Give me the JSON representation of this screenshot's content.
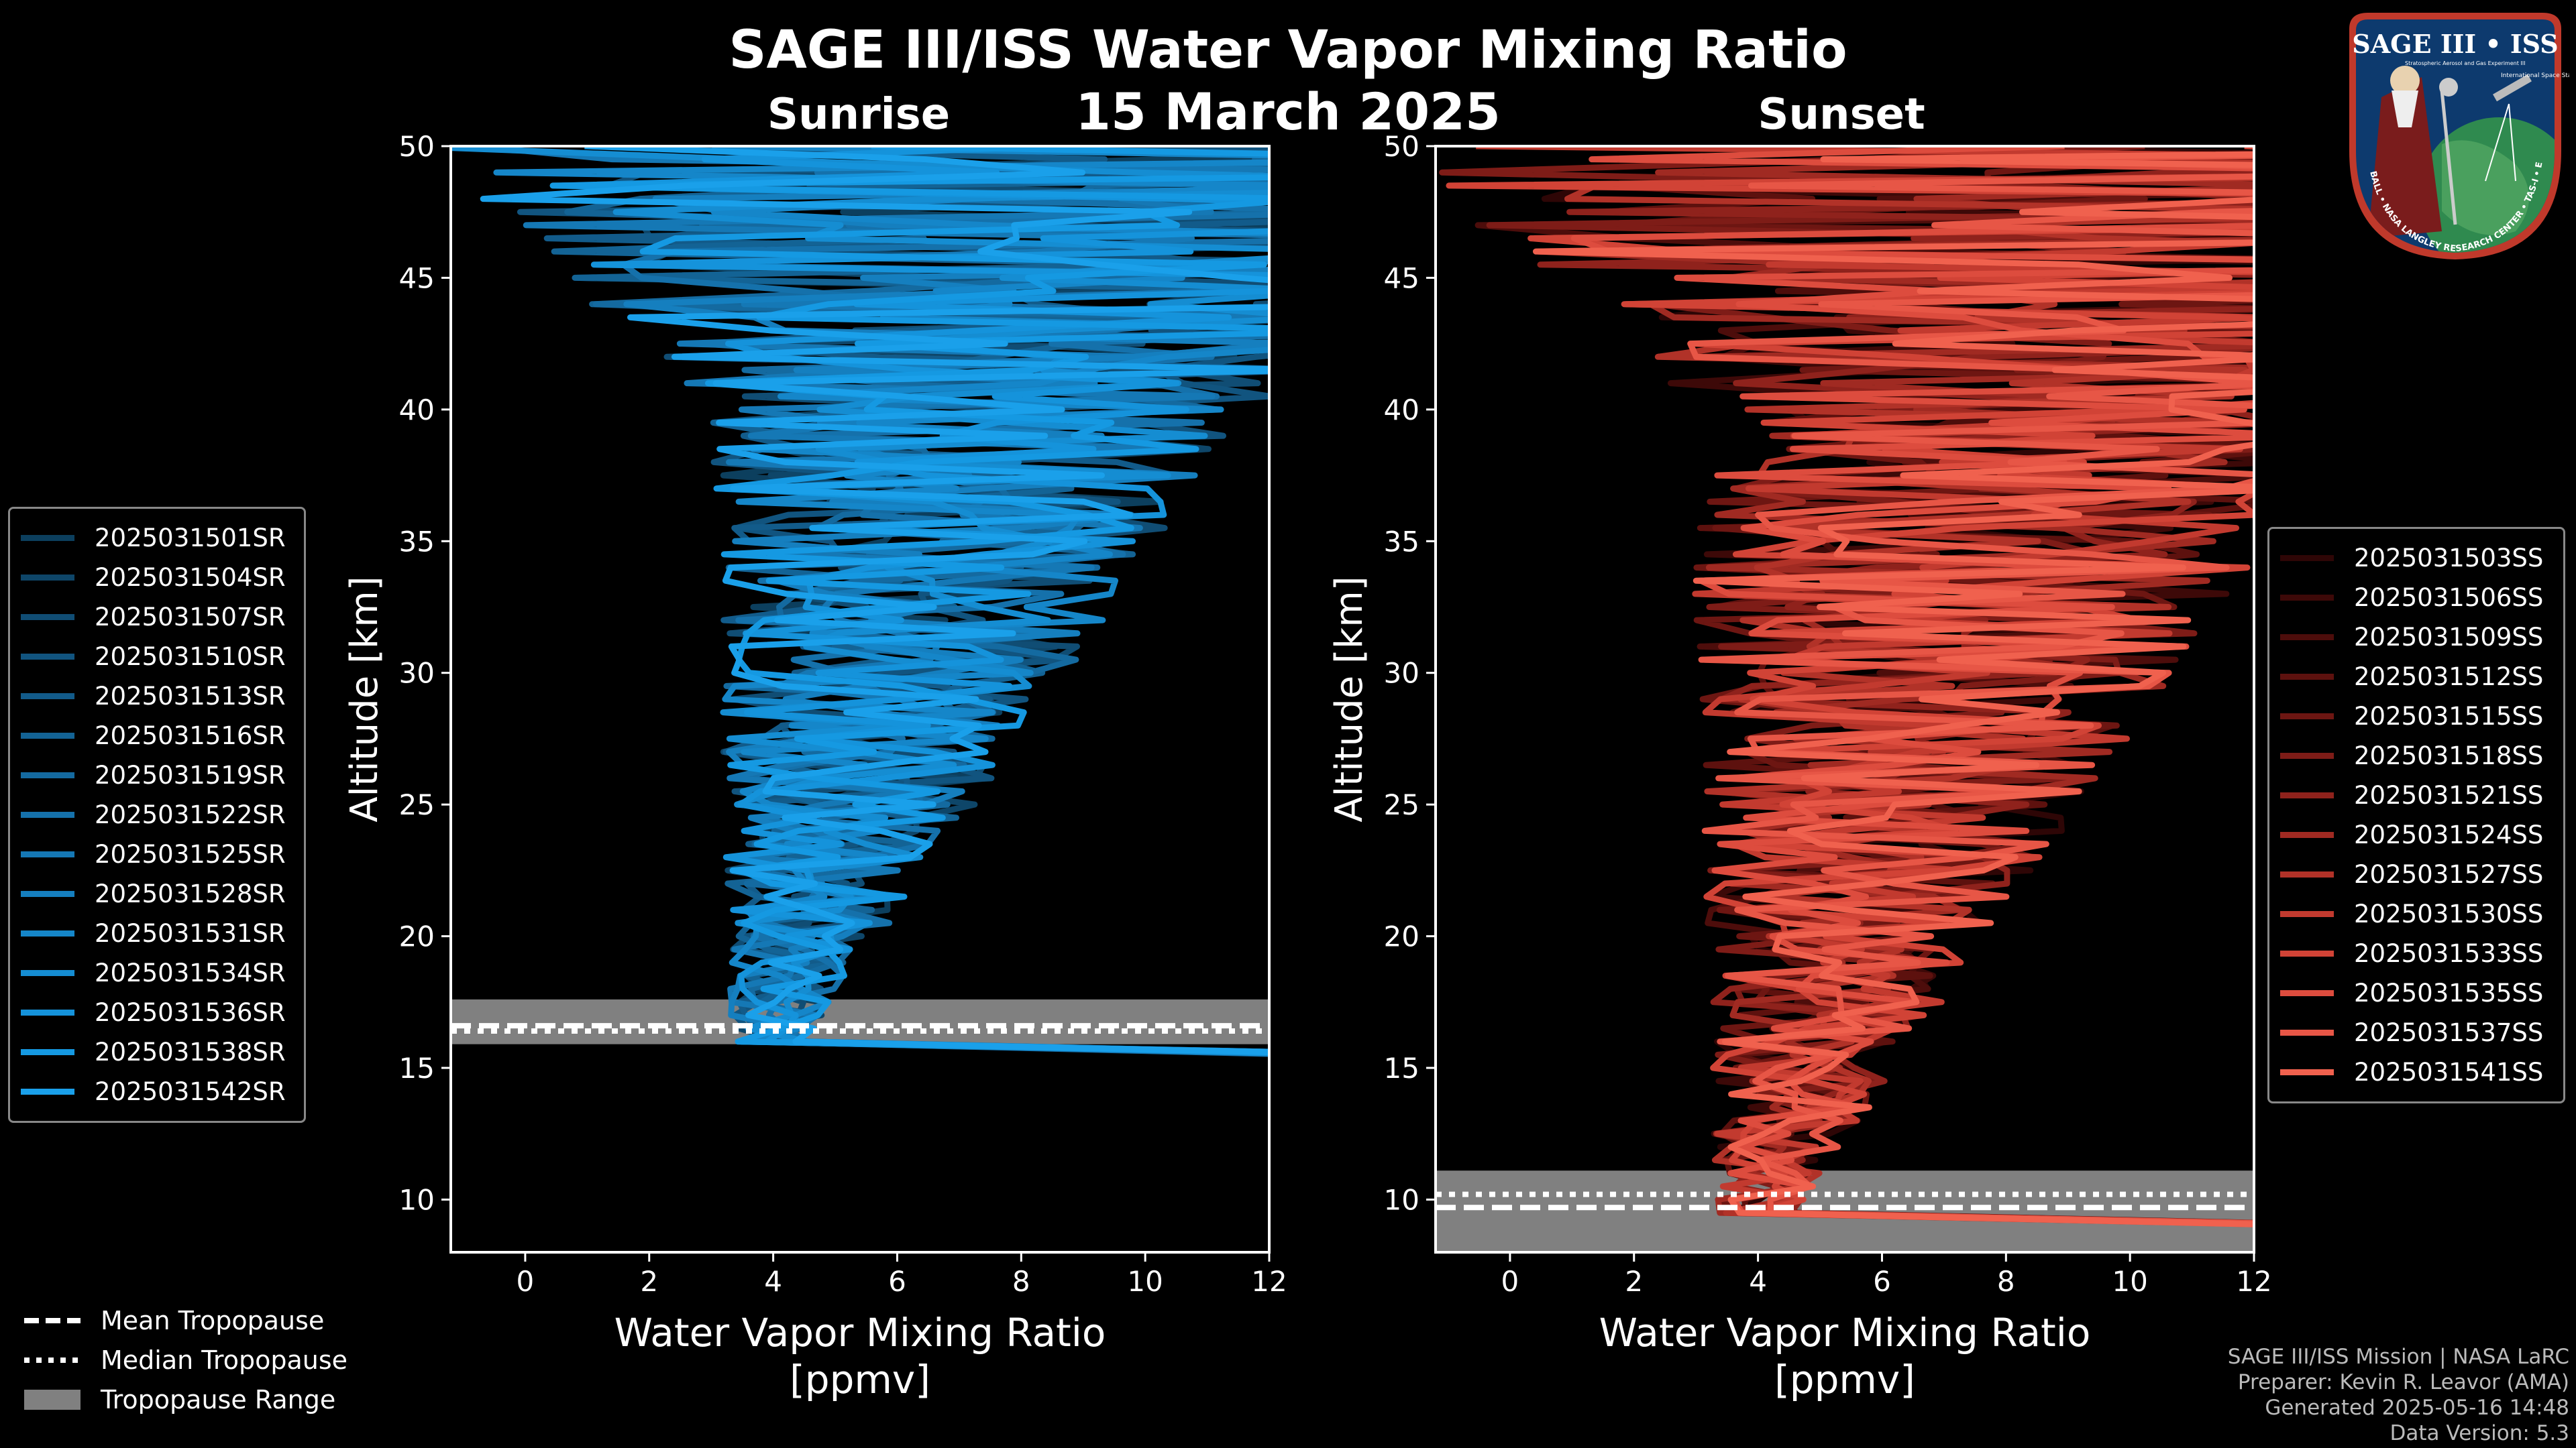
{
  "title": "SAGE III/ISS Water Vapor Mixing Ratio",
  "date": "15 March 2025",
  "logo": {
    "text": "SAGE III • ISS",
    "subtitle": "Stratospheric Aerosol and Gas Experiment III",
    "station": "International Space Station",
    "ring": "BALL • NASA LANGLEY RESEARCH CENTER • TAS-I • ESA"
  },
  "chart_data": [
    {
      "type": "line",
      "name": "sunrise",
      "title": "Sunrise",
      "xlabel": "Water Vapor Mixing Ratio\n[ppmv]",
      "ylabel": "Altitude [km]",
      "xlim": [
        -1.2,
        12
      ],
      "ylim": [
        8,
        50
      ],
      "xticks": [
        0,
        2,
        4,
        6,
        8,
        10,
        12
      ],
      "yticks": [
        10,
        15,
        20,
        25,
        30,
        35,
        40,
        45,
        50
      ],
      "tropopause": {
        "mean": 16.6,
        "median": 16.4,
        "range": [
          15.9,
          17.6
        ]
      },
      "series": [
        {
          "name": "2025031501SR",
          "color": "#0c3f5e"
        },
        {
          "name": "2025031504SR",
          "color": "#0e4669"
        },
        {
          "name": "2025031507SR",
          "color": "#104d74"
        },
        {
          "name": "2025031510SR",
          "color": "#11547f"
        },
        {
          "name": "2025031513SR",
          "color": "#125b8a"
        },
        {
          "name": "2025031516SR",
          "color": "#136395"
        },
        {
          "name": "2025031519SR",
          "color": "#146aa0"
        },
        {
          "name": "2025031522SR",
          "color": "#1571ab"
        },
        {
          "name": "2025031525SR",
          "color": "#1578b5"
        },
        {
          "name": "2025031528SR",
          "color": "#157fbf"
        },
        {
          "name": "2025031531SR",
          "color": "#1586c9"
        },
        {
          "name": "2025031534SR",
          "color": "#158dd2"
        },
        {
          "name": "2025031536SR",
          "color": "#1593db"
        },
        {
          "name": "2025031538SR",
          "color": "#1599e2"
        },
        {
          "name": "2025031542SR",
          "color": "#1aa0ea"
        }
      ]
    },
    {
      "type": "line",
      "name": "sunset",
      "title": "Sunset",
      "xlabel": "Water Vapor Mixing Ratio\n[ppmv]",
      "ylabel": "Altitude [km]",
      "xlim": [
        -1.2,
        12
      ],
      "ylim": [
        8,
        50
      ],
      "xticks": [
        0,
        2,
        4,
        6,
        8,
        10,
        12
      ],
      "yticks": [
        10,
        15,
        20,
        25,
        30,
        35,
        40,
        45,
        50
      ],
      "tropopause": {
        "mean": 9.7,
        "median": 10.2,
        "range": [
          8,
          11.1
        ]
      },
      "series": [
        {
          "name": "2025031503SS",
          "color": "#2e0606"
        },
        {
          "name": "2025031506SS",
          "color": "#3d0908"
        },
        {
          "name": "2025031509SS",
          "color": "#4d0d0b"
        },
        {
          "name": "2025031512SS",
          "color": "#5d110e"
        },
        {
          "name": "2025031515SS",
          "color": "#6d1612"
        },
        {
          "name": "2025031518SS",
          "color": "#7e1c17"
        },
        {
          "name": "2025031521SS",
          "color": "#8f221c"
        },
        {
          "name": "2025031524SS",
          "color": "#a02a22"
        },
        {
          "name": "2025031527SS",
          "color": "#b13228"
        },
        {
          "name": "2025031530SS",
          "color": "#c23a2f"
        },
        {
          "name": "2025031533SS",
          "color": "#d14336"
        },
        {
          "name": "2025031535SS",
          "color": "#dd4c3e"
        },
        {
          "name": "2025031537SS",
          "color": "#e75646"
        },
        {
          "name": "2025031541SS",
          "color": "#f0614e"
        }
      ]
    }
  ],
  "tropopause_legend": {
    "mean": "Mean Tropopause",
    "median": "Median Tropopause",
    "range": "Tropopause Range"
  },
  "credits": [
    "SAGE III/ISS Mission | NASA LaRC",
    "Preparer: Kevin R. Leavor (AMA)",
    "Generated 2025-05-16 14:48",
    "Data Version: 5.3"
  ]
}
